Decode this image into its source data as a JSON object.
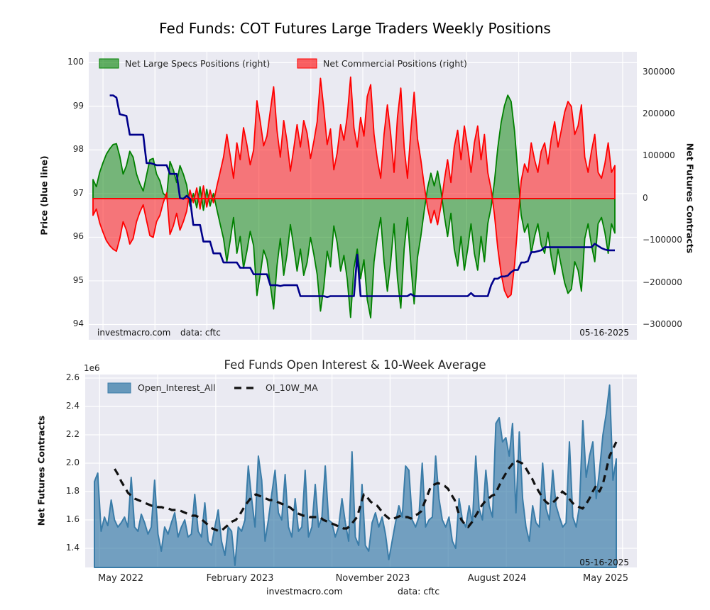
{
  "page": {
    "title": "Fed Funds: COT Futures Large Traders Weekly Positions"
  },
  "footer": {
    "site": "investmacro.com",
    "source": "data: cftc"
  },
  "chart_data": [
    {
      "type": "area",
      "title": "",
      "description": "COT weekly net positions (right axis) with price overlay (left axis), weekly 2022-05 to 2025-05",
      "left_axis": {
        "label": "Price (blue line)",
        "tick_labels": [
          "100",
          "99",
          "98",
          "97",
          "96",
          "95",
          "94"
        ],
        "tick_values": [
          100,
          99,
          98,
          97,
          96,
          95,
          94
        ],
        "ylim": [
          93.65,
          100.25
        ]
      },
      "right_axis": {
        "label": "Net Futures Contracts",
        "tick_labels": [
          "300000",
          "200000",
          "100000",
          "0",
          "−100000",
          "−200000",
          "−300000"
        ],
        "tick_values": [
          300000,
          200000,
          100000,
          0,
          -100000,
          -200000,
          -300000
        ],
        "ylim": [
          -335000,
          348000
        ]
      },
      "x_axis": {
        "tick_labels": [
          "May 2022",
          "February 2023",
          "November 2023",
          "August 2024",
          "May 2025"
        ],
        "labels_visible": false
      },
      "legend": [
        {
          "label": "Net Large Specs Positions (right)",
          "swatch": "green-patch"
        },
        {
          "label": "Net Commercial Positions (right)",
          "swatch": "red-patch"
        }
      ],
      "annotations": {
        "watermark": "investmacro.com",
        "source": "data: cftc",
        "date": "05-16-2025"
      },
      "zero_line_color": "#ff0000",
      "series": [
        {
          "name": "Net Large Specs Positions",
          "axis": "right",
          "style": "area",
          "color": "#008000",
          "fill_alpha": 0.5,
          "values": [
            45000,
            28000,
            62000,
            85000,
            105000,
            118000,
            128000,
            130000,
            100000,
            58000,
            78000,
            112000,
            98000,
            58000,
            35000,
            18000,
            55000,
            92000,
            95000,
            58000,
            42000,
            12000,
            5000,
            88000,
            68000,
            38000,
            78000,
            58000,
            32000,
            -18000,
            12000,
            -22000,
            28000,
            -28000,
            22000,
            -18000,
            12000,
            -25000,
            -60000,
            -95000,
            -150000,
            -100000,
            -45000,
            -130000,
            -90000,
            -165000,
            -125000,
            -78000,
            -112000,
            -230000,
            -180000,
            -122000,
            -145000,
            -205000,
            -262000,
            -160000,
            -95000,
            -182000,
            -132000,
            -62000,
            -115000,
            -172000,
            -120000,
            -182000,
            -152000,
            -92000,
            -132000,
            -180000,
            -267000,
            -210000,
            -125000,
            -162000,
            -65000,
            -105000,
            -172000,
            -135000,
            -192000,
            -282000,
            -165000,
            -120000,
            -190000,
            -145000,
            -240000,
            -283000,
            -150000,
            -90000,
            -45000,
            -150000,
            -220000,
            -150000,
            -60000,
            -190000,
            -260000,
            -120000,
            -45000,
            -155000,
            -250000,
            -140000,
            -90000,
            -30000,
            25000,
            60000,
            30000,
            65000,
            20000,
            -40000,
            -90000,
            -35000,
            -120000,
            -160000,
            -90000,
            -170000,
            -120000,
            -60000,
            -130000,
            -170000,
            -90000,
            -150000,
            -60000,
            -20000,
            40000,
            120000,
            180000,
            220000,
            245000,
            230000,
            160000,
            60000,
            -40000,
            -80000,
            -60000,
            -130000,
            -90000,
            -60000,
            -110000,
            -130000,
            -80000,
            -140000,
            -180000,
            -120000,
            -160000,
            -200000,
            -225000,
            -215000,
            -150000,
            -170000,
            -220000,
            -95000,
            -60000,
            -110000,
            -150000,
            -60000,
            -45000,
            -80000,
            -130000,
            -60000,
            -82000
          ]
        },
        {
          "name": "Net Commercial Positions",
          "axis": "right",
          "style": "area",
          "color": "#ff0000",
          "fill_alpha": 0.5,
          "values": [
            -40000,
            -25000,
            -58000,
            -80000,
            -100000,
            -112000,
            -120000,
            -125000,
            -95000,
            -55000,
            -75000,
            -108000,
            -95000,
            -55000,
            -32000,
            -15000,
            -52000,
            -88000,
            -92000,
            -55000,
            -40000,
            -10000,
            13000,
            -85000,
            -65000,
            -35000,
            -75000,
            -55000,
            -30000,
            20000,
            -10000,
            25000,
            -25000,
            30000,
            -20000,
            20000,
            -10000,
            28000,
            62000,
            98000,
            152000,
            102000,
            48000,
            132000,
            92000,
            168000,
            128000,
            80000,
            115000,
            232000,
            182000,
            125000,
            148000,
            208000,
            265000,
            162000,
            98000,
            185000,
            135000,
            65000,
            118000,
            175000,
            122000,
            185000,
            155000,
            95000,
            135000,
            182000,
            285000,
            212000,
            128000,
            165000,
            68000,
            108000,
            175000,
            138000,
            195000,
            288000,
            168000,
            122000,
            192000,
            148000,
            242000,
            270000,
            152000,
            92000,
            48000,
            152000,
            222000,
            152000,
            62000,
            192000,
            262000,
            122000,
            48000,
            158000,
            252000,
            142000,
            92000,
            32000,
            -22000,
            -58000,
            -28000,
            -62000,
            -18000,
            42000,
            92000,
            38000,
            122000,
            162000,
            92000,
            172000,
            122000,
            62000,
            132000,
            172000,
            92000,
            152000,
            62000,
            22000,
            -38000,
            -118000,
            -178000,
            -218000,
            -235000,
            -228000,
            -158000,
            -58000,
            42000,
            82000,
            62000,
            132000,
            92000,
            62000,
            112000,
            132000,
            82000,
            142000,
            182000,
            122000,
            162000,
            205000,
            230000,
            218000,
            152000,
            172000,
            222000,
            98000,
            62000,
            112000,
            152000,
            62000,
            48000,
            82000,
            132000,
            62000,
            78000
          ]
        },
        {
          "name": "Price",
          "axis": "left",
          "style": "line",
          "color": "#00008b",
          "values": [
            null,
            null,
            null,
            null,
            null,
            99.25,
            99.25,
            99.2,
            98.82,
            98.8,
            98.78,
            98.35,
            98.35,
            98.35,
            98.35,
            98.35,
            97.7,
            97.7,
            97.68,
            97.65,
            97.65,
            97.65,
            97.65,
            97.45,
            97.45,
            97.45,
            96.9,
            96.88,
            96.95,
            96.88,
            96.28,
            96.28,
            96.28,
            95.9,
            95.9,
            95.9,
            95.63,
            95.63,
            95.63,
            95.42,
            95.42,
            95.42,
            95.42,
            95.42,
            95.3,
            95.3,
            95.3,
            95.3,
            95.15,
            95.15,
            95.15,
            95.15,
            95.15,
            94.9,
            94.9,
            94.9,
            94.88,
            94.9,
            94.9,
            94.9,
            94.9,
            94.9,
            94.65,
            94.65,
            94.65,
            94.65,
            94.65,
            94.65,
            94.65,
            94.65,
            94.63,
            94.65,
            94.65,
            94.65,
            94.65,
            94.65,
            94.65,
            94.65,
            94.65,
            95.6,
            94.65,
            94.65,
            94.65,
            94.65,
            94.65,
            94.65,
            94.65,
            94.65,
            94.65,
            94.65,
            94.65,
            94.65,
            94.65,
            94.65,
            94.65,
            94.7,
            94.65,
            94.65,
            94.65,
            94.65,
            94.65,
            94.65,
            94.65,
            94.65,
            94.65,
            94.65,
            94.65,
            94.65,
            94.65,
            94.65,
            94.65,
            94.65,
            94.65,
            94.72,
            94.65,
            94.65,
            94.65,
            94.65,
            94.65,
            94.9,
            95.05,
            95.05,
            95.1,
            95.1,
            95.12,
            95.2,
            95.25,
            95.25,
            95.42,
            95.42,
            95.45,
            95.66,
            95.66,
            95.68,
            95.7,
            95.77,
            95.77,
            95.77,
            95.77,
            95.77,
            95.77,
            95.77,
            95.77,
            95.77,
            95.77,
            95.77,
            95.77,
            95.77,
            95.77,
            95.77,
            95.85,
            95.8,
            95.75,
            95.72,
            95.7,
            95.7,
            95.7
          ]
        }
      ]
    },
    {
      "type": "area",
      "title": "Fed Funds Open Interest & 10-Week Average",
      "offset_label": "1e6",
      "unit_multiplier": 1000000,
      "left_axis": {
        "label": "Net Futures Contracts",
        "tick_labels": [
          "2.6",
          "2.4",
          "2.2",
          "2.0",
          "1.8",
          "1.6",
          "1.4"
        ],
        "tick_values": [
          2.6,
          2.4,
          2.2,
          2.0,
          1.8,
          1.6,
          1.4
        ],
        "ylim": [
          1.265,
          2.625
        ]
      },
      "x_axis": {
        "tick_labels": [
          "May 2022",
          "February 2023",
          "November 2023",
          "August 2024",
          "May 2025"
        ],
        "labels_visible": true
      },
      "legend": [
        {
          "label": "Open_Interest_All",
          "swatch": "blue-patch"
        },
        {
          "label": "OI_10W_MA",
          "swatch": "dashed-line"
        }
      ],
      "annotations": {
        "date": "05-16-2025"
      },
      "series": [
        {
          "name": "Open_Interest_All",
          "style": "area",
          "color": "#3a7ca8",
          "fill_alpha": 0.68,
          "values": [
            1.87,
            1.93,
            1.52,
            1.62,
            1.56,
            1.74,
            1.6,
            1.55,
            1.58,
            1.62,
            1.55,
            1.9,
            1.55,
            1.52,
            1.64,
            1.58,
            1.5,
            1.55,
            1.88,
            1.5,
            1.38,
            1.55,
            1.5,
            1.58,
            1.65,
            1.48,
            1.55,
            1.6,
            1.48,
            1.5,
            1.78,
            1.52,
            1.48,
            1.72,
            1.45,
            1.42,
            1.55,
            1.67,
            1.45,
            1.35,
            1.55,
            1.52,
            1.28,
            1.55,
            1.52,
            1.6,
            1.98,
            1.75,
            1.55,
            2.05,
            1.88,
            1.45,
            1.6,
            1.78,
            1.95,
            1.65,
            1.6,
            1.92,
            1.55,
            1.48,
            1.75,
            1.52,
            1.55,
            1.95,
            1.48,
            1.55,
            1.85,
            1.55,
            1.62,
            1.98,
            1.6,
            1.58,
            1.48,
            1.55,
            1.75,
            1.58,
            1.45,
            2.08,
            1.48,
            1.42,
            1.85,
            1.42,
            1.38,
            1.58,
            1.65,
            1.55,
            1.62,
            1.5,
            1.32,
            1.45,
            1.58,
            1.7,
            1.62,
            1.98,
            1.95,
            1.6,
            1.55,
            1.62,
            2.0,
            1.55,
            1.6,
            1.62,
            2.05,
            1.75,
            1.6,
            1.55,
            1.62,
            1.45,
            1.4,
            1.75,
            1.6,
            1.55,
            1.7,
            1.58,
            2.05,
            1.68,
            1.6,
            1.95,
            1.7,
            1.62,
            2.28,
            2.32,
            2.15,
            2.18,
            2.05,
            2.28,
            1.65,
            2.22,
            1.75,
            1.55,
            1.45,
            1.7,
            1.58,
            1.55,
            2.0,
            1.68,
            1.6,
            1.95,
            1.7,
            1.62,
            1.55,
            1.58,
            2.15,
            1.62,
            1.55,
            1.7,
            2.3,
            1.9,
            2.05,
            2.15,
            1.75,
            1.95,
            2.2,
            2.35,
            2.55,
            1.88,
            2.03
          ]
        },
        {
          "name": "OI_10W_MA",
          "style": "dashed-line",
          "color": "#111111",
          "values": [
            null,
            null,
            null,
            null,
            null,
            null,
            1.96,
            1.92,
            1.87,
            1.83,
            1.79,
            1.77,
            1.75,
            1.74,
            1.73,
            1.72,
            1.71,
            1.7,
            1.7,
            1.69,
            1.69,
            1.68,
            1.68,
            1.67,
            1.67,
            1.67,
            1.66,
            1.65,
            1.64,
            1.63,
            1.63,
            1.62,
            1.6,
            1.58,
            1.56,
            1.54,
            1.53,
            1.52,
            1.53,
            1.55,
            1.57,
            1.59,
            1.6,
            1.63,
            1.67,
            1.71,
            1.74,
            1.77,
            1.78,
            1.77,
            1.76,
            1.75,
            1.74,
            1.74,
            1.73,
            1.72,
            1.71,
            1.7,
            1.69,
            1.67,
            1.65,
            1.64,
            1.63,
            1.63,
            1.62,
            1.62,
            1.62,
            1.62,
            1.6,
            1.59,
            1.58,
            1.57,
            1.56,
            1.55,
            1.54,
            1.54,
            1.56,
            1.59,
            1.62,
            1.7,
            1.78,
            1.76,
            1.73,
            1.71,
            1.7,
            1.67,
            1.64,
            1.62,
            1.6,
            1.61,
            1.62,
            1.63,
            1.62,
            1.62,
            1.61,
            1.63,
            1.64,
            1.66,
            1.72,
            1.78,
            1.84,
            1.85,
            1.86,
            1.85,
            1.84,
            1.82,
            1.78,
            1.74,
            1.66,
            1.6,
            1.57,
            1.55,
            1.58,
            1.62,
            1.66,
            1.7,
            1.73,
            1.75,
            1.77,
            1.78,
            1.83,
            1.88,
            1.92,
            1.96,
            1.99,
            2.02,
            2.01,
            2.0,
            1.97,
            1.93,
            1.89,
            1.84,
            1.8,
            1.76,
            1.73,
            1.71,
            1.72,
            1.74,
            1.77,
            1.8,
            1.78,
            1.75,
            1.72,
            1.7,
            1.69,
            1.68,
            1.71,
            1.75,
            1.8,
            1.84,
            1.8,
            1.85,
            1.95,
            2.05,
            2.1,
            2.15
          ]
        }
      ]
    }
  ]
}
